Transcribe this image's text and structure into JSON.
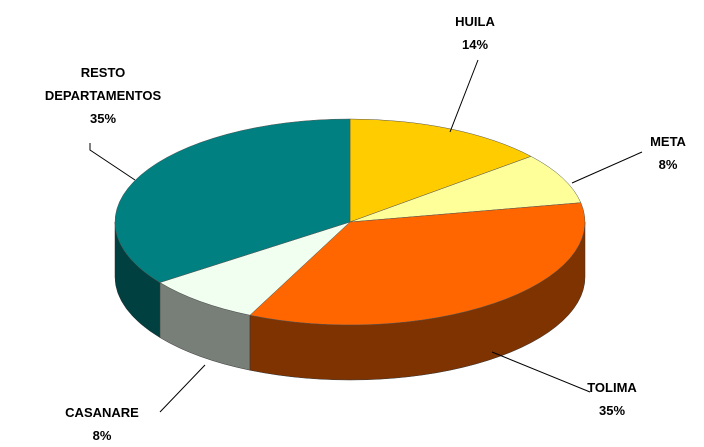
{
  "chart_data": {
    "type": "pie3d",
    "categories": [
      "HUILA",
      "META",
      "TOLIMA",
      "CASANARE",
      "RESTO DEPARTAMENTOS"
    ],
    "values": [
      14,
      8,
      35,
      8,
      35
    ],
    "value_labels": [
      "14%",
      "8%",
      "35%",
      "8%",
      "35%"
    ],
    "colors": [
      "#ffcc00",
      "#ffff99",
      "#ff6600",
      "#f0fff0",
      "#008080"
    ]
  }
}
